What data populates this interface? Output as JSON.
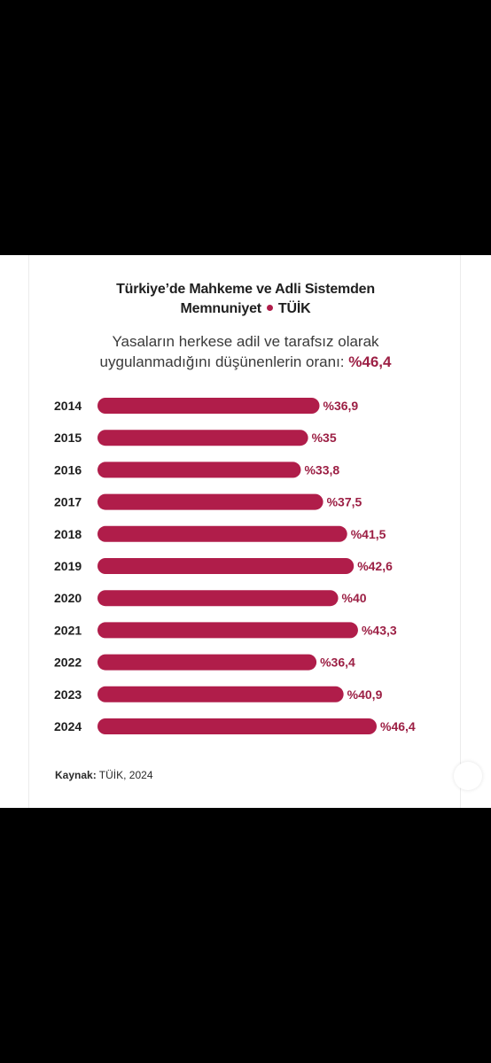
{
  "title_line1": "Türkiye’de Mahkeme ve Adli Sistemden",
  "title_line2": "Memnuniyet",
  "title_source": "TÜİK",
  "subtitle_line1": "Yasaların herkese adil ve tarafsız olarak",
  "subtitle_line2": "uygulanmadığını düşünenlerin oranı:",
  "subtitle_highlight": "%46,4",
  "source_label": "Kaynak:",
  "source_value": " TÜİK, 2024",
  "colors": {
    "accent": "#b01d4a",
    "highlight_text": "#9c1f44"
  },
  "chart_data": {
    "type": "bar",
    "orientation": "horizontal",
    "categories": [
      "2014",
      "2015",
      "2016",
      "2017",
      "2018",
      "2019",
      "2020",
      "2021",
      "2022",
      "2023",
      "2024"
    ],
    "values": [
      36.9,
      35,
      33.8,
      37.5,
      41.5,
      42.6,
      40,
      43.3,
      36.4,
      40.9,
      46.4
    ],
    "value_labels": [
      "%36,9",
      "%35",
      "%33,8",
      "%37,5",
      "%41,5",
      "%42,6",
      "%40",
      "%43,3",
      "%36,4",
      "%40,9",
      "%46,4"
    ]
  }
}
